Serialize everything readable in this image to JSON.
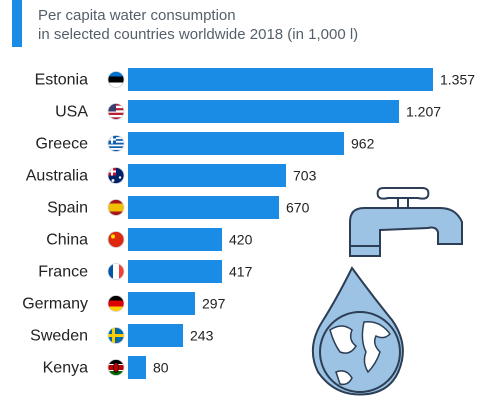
{
  "header": {
    "title": "",
    "subtitle_line1": "Per capita water consumption",
    "subtitle_line2": "in selected countries worldwide 2018 (in 1,000 l)"
  },
  "colors": {
    "bar": "#1b8ce6",
    "accent": "#1b8ce6"
  },
  "chart_data": {
    "type": "bar",
    "orientation": "horizontal",
    "categories": [
      "Estonia",
      "USA",
      "Greece",
      "Australia",
      "Spain",
      "China",
      "France",
      "Germany",
      "Sweden",
      "Kenya"
    ],
    "values": [
      1357,
      1207,
      962,
      703,
      670,
      420,
      417,
      297,
      243,
      80
    ],
    "value_labels": [
      "1.357",
      "1.207",
      "962",
      "703",
      "670",
      "420",
      "417",
      "297",
      "243",
      "80"
    ],
    "flag_icons": [
      "estonia-flag-icon",
      "usa-flag-icon",
      "greece-flag-icon",
      "australia-flag-icon",
      "spain-flag-icon",
      "china-flag-icon",
      "france-flag-icon",
      "germany-flag-icon",
      "sweden-flag-icon",
      "kenya-flag-icon"
    ],
    "xlim": [
      0,
      1357
    ],
    "grid": false,
    "legend": "none"
  },
  "illustration": {
    "icon": "water-tap-globe-drop-icon"
  }
}
